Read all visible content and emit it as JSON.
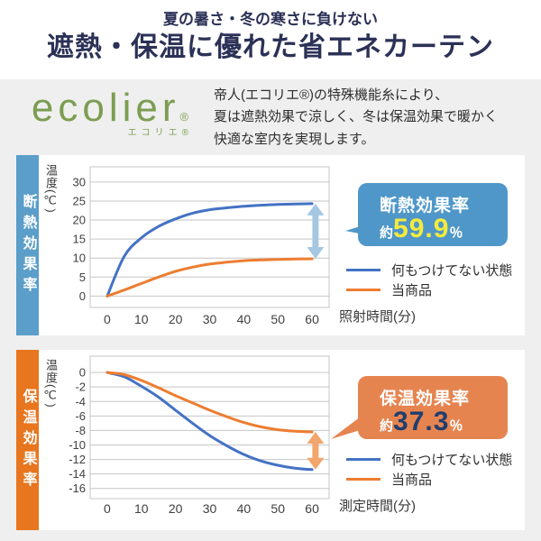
{
  "header": {
    "subtitle": "夏の暑さ・冬の寒さに負けない",
    "title": "遮熱・保温に優れた省エネカーテン"
  },
  "intro": {
    "logo_text": "ecolier",
    "logo_reg": "®",
    "logo_sub": "エコリエ®",
    "description_lines": [
      "帝人(エコリエ®)の特殊機能糸により、",
      "夏は遮熱効果で涼しく、冬は保温効果で暖かく",
      "快適な室内を実現します。"
    ]
  },
  "colors": {
    "title_navy": "#2b3156",
    "logo_green": "#7c9d52",
    "page_gray": "#efefef",
    "grid_gray": "#c6c6c6",
    "tick_text": "#404040"
  },
  "chart_data": [
    {
      "type": "line",
      "side_label": "断熱効果率",
      "title": "断熱効果率 約59.9%",
      "ylabel": "温度(℃)",
      "xlabel": "照射時間(分)",
      "x": [
        0,
        5,
        10,
        15,
        20,
        25,
        30,
        35,
        40,
        45,
        50,
        55,
        60
      ],
      "xticks": [
        0,
        10,
        20,
        30,
        40,
        50,
        60
      ],
      "yticks": [
        30,
        25,
        20,
        15,
        10,
        5,
        0
      ],
      "ylim": [
        0,
        30
      ],
      "series": [
        {
          "name": "何もつけてない状態",
          "color": "#4472c4",
          "values": [
            0,
            10.5,
            15.3,
            18.3,
            20.3,
            21.8,
            22.7,
            23.2,
            23.6,
            23.9,
            24.1,
            24.2,
            24.3
          ]
        },
        {
          "name": "当商品",
          "color": "#ed7d31",
          "values": [
            0,
            1.6,
            3.3,
            5.0,
            6.5,
            7.6,
            8.4,
            8.9,
            9.3,
            9.5,
            9.65,
            9.75,
            9.8
          ]
        }
      ],
      "badge": {
        "title": "断熱効果率",
        "prefix": "約",
        "value": "59.9",
        "unit": "％"
      },
      "band_color": "#5b9ec9",
      "accent_color": "#4f97c8",
      "value_color": "#f5eb3c",
      "arrow_color": "#a6c7e2",
      "legend_position": "right"
    },
    {
      "type": "line",
      "side_label": "保温効果率",
      "title": "保温効果率 約37.3%",
      "ylabel": "温度(℃)",
      "xlabel": "測定時間(分)",
      "x": [
        0,
        5,
        10,
        15,
        20,
        25,
        30,
        35,
        40,
        45,
        50,
        55,
        60
      ],
      "xticks": [
        0,
        10,
        20,
        30,
        40,
        50,
        60
      ],
      "yticks": [
        0,
        -2,
        -4,
        -6,
        -8,
        -10,
        -12,
        -14,
        -16
      ],
      "ylim": [
        -16,
        0
      ],
      "series": [
        {
          "name": "何もつけてない状態",
          "color": "#4472c4",
          "values": [
            0,
            -0.6,
            -1.9,
            -3.4,
            -5.2,
            -7.0,
            -8.7,
            -10.1,
            -11.3,
            -12.2,
            -12.8,
            -13.2,
            -13.4
          ]
        },
        {
          "name": "当商品",
          "color": "#ed7d31",
          "values": [
            0,
            -0.3,
            -1.1,
            -2.1,
            -3.2,
            -4.2,
            -5.2,
            -6.1,
            -6.9,
            -7.5,
            -7.9,
            -8.1,
            -8.2
          ]
        }
      ],
      "badge": {
        "title": "保温効果率",
        "prefix": "約",
        "value": "37.3",
        "unit": "％"
      },
      "band_color": "#e8761f",
      "accent_color": "#e68450",
      "value_color": "#1f3e6e",
      "arrow_color": "#f2a56c",
      "legend_position": "right"
    }
  ]
}
